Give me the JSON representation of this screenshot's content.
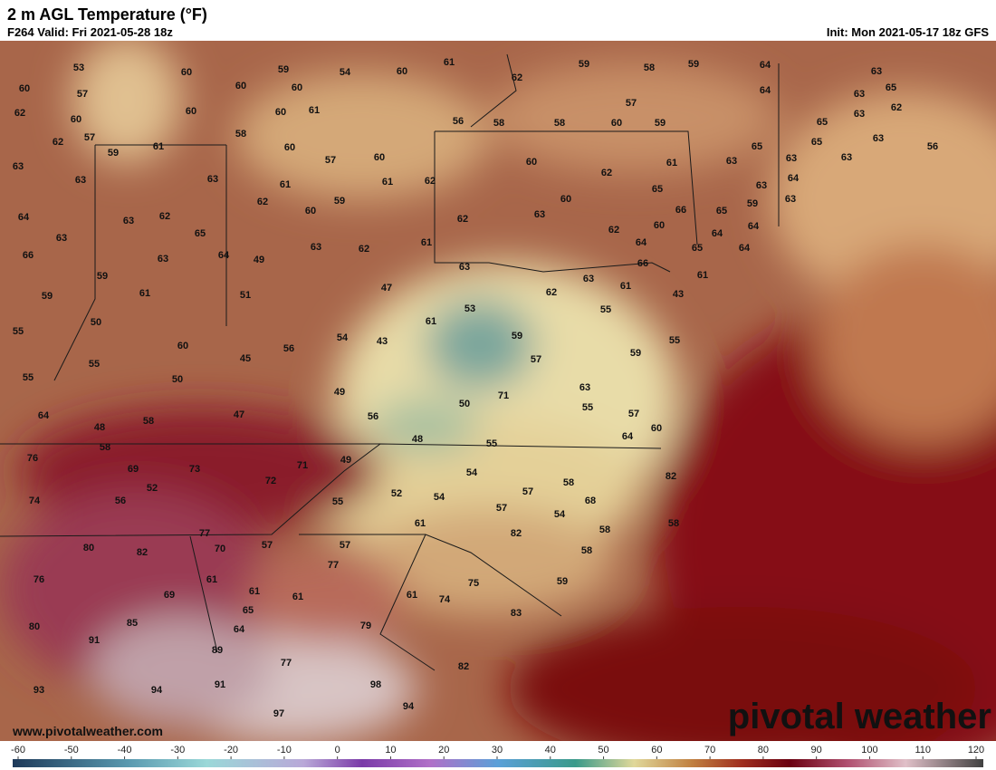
{
  "header": {
    "title": "2 m AGL Temperature (°F)",
    "valid": "F264 Valid: Fri 2021-05-28 18z",
    "init": "Init: Mon 2021-05-17 18z GFS"
  },
  "map": {
    "stations": [
      53,
      60,
      59,
      54,
      60,
      61,
      59,
      58,
      59,
      64,
      63,
      62,
      64,
      65,
      63,
      60,
      57,
      60,
      60,
      62,
      60,
      60,
      61,
      57,
      63,
      65,
      62,
      60,
      56,
      58,
      58,
      60,
      59,
      62,
      57,
      58,
      65,
      65,
      63,
      56,
      59,
      61,
      60,
      57,
      60,
      60,
      61,
      63,
      63,
      63,
      63,
      63,
      63,
      61,
      59,
      61,
      62,
      62,
      65,
      63,
      64,
      63,
      64,
      63,
      62,
      62,
      60,
      60,
      63,
      62,
      66,
      65,
      59,
      64,
      63,
      65,
      63,
      62,
      61,
      62,
      60,
      64,
      64,
      64,
      66,
      63,
      64,
      49,
      63,
      66,
      65,
      59,
      63,
      61,
      59,
      61,
      51,
      47,
      62,
      61,
      43,
      53,
      55,
      50,
      61,
      55,
      60,
      56,
      54,
      43,
      59,
      55,
      55,
      45,
      57,
      59,
      55,
      50,
      63,
      49,
      71,
      47,
      50,
      55,
      57,
      64,
      58,
      56,
      60,
      48,
      48,
      55,
      64,
      58,
      76,
      69,
      73,
      71,
      49,
      54,
      58,
      82,
      72,
      52,
      52,
      54,
      57,
      68,
      74,
      56,
      55,
      57,
      54,
      61,
      58,
      58,
      82,
      77,
      80,
      82,
      70,
      57,
      57,
      58,
      77,
      76,
      61,
      59,
      75,
      69,
      61,
      61,
      61,
      74,
      65,
      83,
      80,
      85,
      64,
      79,
      91,
      89,
      77,
      82,
      93,
      94,
      91,
      98,
      94,
      97
    ]
  },
  "colorbar": {
    "ticks": [
      -60,
      -50,
      -40,
      -30,
      -20,
      -10,
      0,
      10,
      20,
      30,
      40,
      50,
      60,
      70,
      80,
      90,
      100,
      110,
      120
    ]
  },
  "footer": {
    "url": "www.pivotalweather.com",
    "brand": "pivotal weather"
  }
}
